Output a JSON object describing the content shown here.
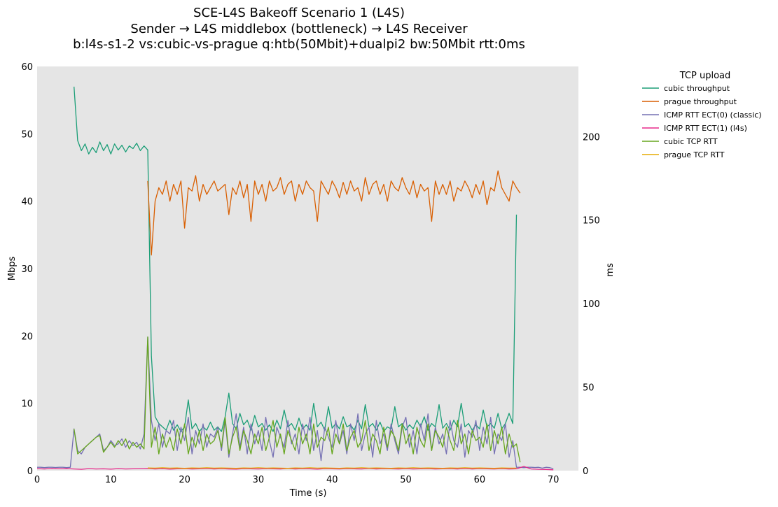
{
  "chart_data": {
    "type": "line",
    "title": [
      "SCE-L4S Bakeoff Scenario 1 (L4S)",
      "Sender → L4S middlebox (bottleneck) → L4S Receiver",
      "b:l4s-s1-2 vs:cubic-vs-prague q:htb(50Mbit)+dualpi2 bw:50Mbit rtt:0ms"
    ],
    "xlabel": "Time (s)",
    "ylabel": "Mbps",
    "y2label": "ms",
    "xlim": [
      0,
      73.4
    ],
    "ylim": [
      0,
      60
    ],
    "y2lim": [
      0,
      242
    ],
    "xticks": [
      "0",
      "10",
      "20",
      "30",
      "40",
      "50",
      "60",
      "70"
    ],
    "yticks": [
      "0",
      "10",
      "20",
      "30",
      "40",
      "50",
      "60"
    ],
    "y2ticks": [
      "0",
      "50",
      "100",
      "150",
      "200"
    ],
    "grid": false,
    "legend": {
      "title": "TCP upload",
      "placement": "outside-right"
    },
    "series": [
      {
        "name": "cubic throughput",
        "axis": "left",
        "color": "#1b9e77",
        "x_start": 5,
        "x_step": 0.5,
        "y": [
          57,
          49,
          47.5,
          48.5,
          47,
          48,
          47.2,
          48.8,
          47.5,
          48.4,
          47,
          48.5,
          47.6,
          48.3,
          47.3,
          48.2,
          47.8,
          48.6,
          47.5,
          48.2,
          47.6,
          17,
          8,
          7,
          6.5,
          6,
          7.5,
          6,
          6.8,
          5.8,
          6.5,
          10.5,
          6.2,
          7,
          5.8,
          6.5,
          6,
          7.2,
          6,
          6.5,
          5.8,
          8,
          11.5,
          7,
          6.2,
          8.5,
          6.8,
          7.5,
          6,
          8.2,
          6.5,
          7,
          6,
          6.8,
          5.8,
          7.5,
          6.2,
          9,
          6.5,
          7,
          6,
          7.8,
          6.2,
          6.8,
          6,
          10,
          6.5,
          7.2,
          6,
          9.5,
          6.3,
          7,
          6.2,
          8,
          6.5,
          6.8,
          6,
          7.5,
          6.2,
          9.8,
          6.5,
          7,
          6,
          7.2,
          5.8,
          6.5,
          6.2,
          9.5,
          6.5,
          7,
          6,
          6.8,
          6.2,
          7.5,
          6.5,
          8,
          6,
          7,
          6.5,
          9.8,
          6.3,
          7,
          6,
          7.5,
          6.5,
          10,
          6.5,
          7,
          6,
          6.8,
          6.2,
          9,
          6.5,
          7,
          6.3,
          8.5,
          6.2,
          7,
          8.5,
          7,
          38
        ]
      },
      {
        "name": "prague throughput",
        "axis": "left",
        "color": "#d95f02",
        "x_start": 15,
        "x_step": 0.5,
        "y": [
          43,
          32,
          40,
          42,
          41,
          43,
          40,
          42.5,
          41,
          43,
          36,
          42,
          41.5,
          43.8,
          40,
          42.5,
          41,
          42,
          43,
          41.5,
          42,
          42.5,
          38,
          42,
          41,
          43,
          40.5,
          42.5,
          37,
          43,
          41,
          42.5,
          40,
          43,
          41.5,
          42,
          43.5,
          41,
          42.5,
          43,
          40,
          42.5,
          41,
          43,
          42,
          41.5,
          37,
          43,
          42,
          41,
          43,
          42,
          40.5,
          42.8,
          41,
          43,
          41.5,
          42,
          40,
          43.5,
          41,
          42.5,
          43,
          41,
          42.5,
          40,
          43,
          42,
          41.5,
          43.5,
          42,
          41,
          43,
          40.5,
          42.5,
          41.5,
          42,
          37,
          43,
          41,
          42.5,
          41,
          43,
          40,
          42,
          41.5,
          43,
          42,
          40.5,
          42.5,
          41,
          43,
          39.5,
          42,
          41.5,
          44.5,
          42,
          41,
          40,
          43,
          42,
          41.2
        ]
      },
      {
        "name": "ICMP RTT ECT(0) (classic)",
        "axis": "right",
        "color": "#7570b3",
        "x_start": 0,
        "x_step": 0.5,
        "y": [
          2,
          2,
          1.8,
          2,
          2,
          1.9,
          2,
          2,
          1.8,
          2,
          25,
          12,
          10,
          14,
          16,
          18,
          20,
          22,
          12,
          14,
          18,
          15,
          16,
          19,
          14,
          18,
          15,
          17,
          13,
          22,
          80,
          30,
          18,
          28,
          14,
          24,
          22,
          30,
          12,
          26,
          18,
          32,
          10,
          24,
          16,
          28,
          14,
          22,
          20,
          26,
          12,
          30,
          8,
          22,
          34,
          14,
          26,
          10,
          28,
          16,
          24,
          12,
          32,
          18,
          8,
          26,
          20,
          14,
          30,
          16,
          22,
          10,
          28,
          18,
          32,
          12,
          24,
          6,
          26,
          20,
          14,
          30,
          16,
          24,
          10,
          28,
          18,
          34,
          12,
          22,
          26,
          8,
          30,
          16,
          22,
          12,
          28,
          18,
          10,
          26,
          32,
          14,
          24,
          10,
          28,
          18,
          34,
          12,
          26,
          16,
          22,
          10,
          30,
          18,
          14,
          28,
          8,
          24,
          20,
          30,
          12,
          26,
          16,
          32,
          10,
          22,
          18,
          28,
          8,
          18,
          2,
          2,
          1.8,
          2,
          2,
          1.9,
          2,
          1.5,
          2,
          1.8,
          1.2
        ]
      },
      {
        "name": "ICMP RTT ECT(1) (l4s)",
        "axis": "right",
        "color": "#e7298a",
        "x_start": 0,
        "x_step": 1,
        "y": [
          1.2,
          1,
          1.3,
          1.1,
          1.2,
          1,
          0.8,
          1.2,
          1,
          1.1,
          0.9,
          1.2,
          1,
          1.1,
          1.2,
          1.3,
          1,
          1.2,
          0.9,
          1.1,
          1.2,
          1,
          1.1,
          1.3,
          1,
          1.2,
          1,
          0.9,
          1.2,
          1.1,
          1,
          1.2,
          1.1,
          1,
          1.3,
          1,
          1.2,
          1.1,
          0.9,
          1.2,
          1.1,
          1,
          1.2,
          1.1,
          1,
          1.3,
          1,
          1.2,
          1.1,
          1,
          1.2,
          1,
          1.1,
          1.2,
          1,
          1.1,
          1.2,
          1,
          1.3,
          1,
          1.2,
          1.1,
          1,
          1.2,
          1,
          1.1,
          2.5,
          1,
          0.8,
          0.7,
          0.5
        ]
      },
      {
        "name": "cubic TCP RTT",
        "axis": "right",
        "color": "#66a61e",
        "x_start": 5,
        "x_step": 0.5,
        "y": [
          25,
          10,
          12,
          14,
          16,
          18,
          20,
          21,
          11,
          14,
          17,
          14,
          18,
          15,
          19,
          13,
          17,
          14,
          16,
          13,
          80,
          14,
          26,
          10,
          22,
          14,
          20,
          12,
          25,
          16,
          28,
          10,
          20,
          14,
          24,
          12,
          22,
          16,
          18,
          24,
          14,
          32,
          10,
          20,
          26,
          12,
          24,
          18,
          10,
          22,
          16,
          26,
          12,
          20,
          30,
          14,
          22,
          10,
          24,
          18,
          12,
          26,
          16,
          22,
          10,
          28,
          14,
          20,
          18,
          26,
          10,
          22,
          16,
          28,
          12,
          20,
          24,
          14,
          18,
          30,
          12,
          22,
          18,
          10,
          26,
          14,
          24,
          20,
          12,
          28,
          16,
          22,
          10,
          26,
          18,
          14,
          28,
          12,
          24,
          20,
          14,
          26,
          18,
          12,
          30,
          16,
          22,
          10,
          24,
          18,
          20,
          14,
          28,
          12,
          24,
          16,
          26,
          10,
          22,
          14,
          16,
          5
        ]
      },
      {
        "name": "prague TCP RTT",
        "axis": "right",
        "color": "#e6ab02",
        "x_start": 15,
        "x_step": 1,
        "y": [
          1.6,
          1.5,
          1.7,
          1.5,
          1.6,
          1.4,
          1.6,
          1.5,
          1.7,
          1.5,
          1.6,
          1.5,
          1.4,
          1.6,
          1.5,
          1.7,
          1.5,
          1.6,
          1.5,
          1.4,
          1.6,
          1.5,
          1.7,
          1.5,
          1.6,
          1.5,
          1.4,
          1.6,
          1.5,
          1.7,
          1.5,
          1.6,
          1.5,
          1.4,
          1.6,
          1.5,
          1.7,
          1.5,
          1.6,
          1.5,
          1.4,
          1.6,
          1.5,
          1.7,
          1.5,
          1.6,
          1.5,
          1.4,
          1.6,
          1.5,
          1.5
        ]
      }
    ]
  }
}
